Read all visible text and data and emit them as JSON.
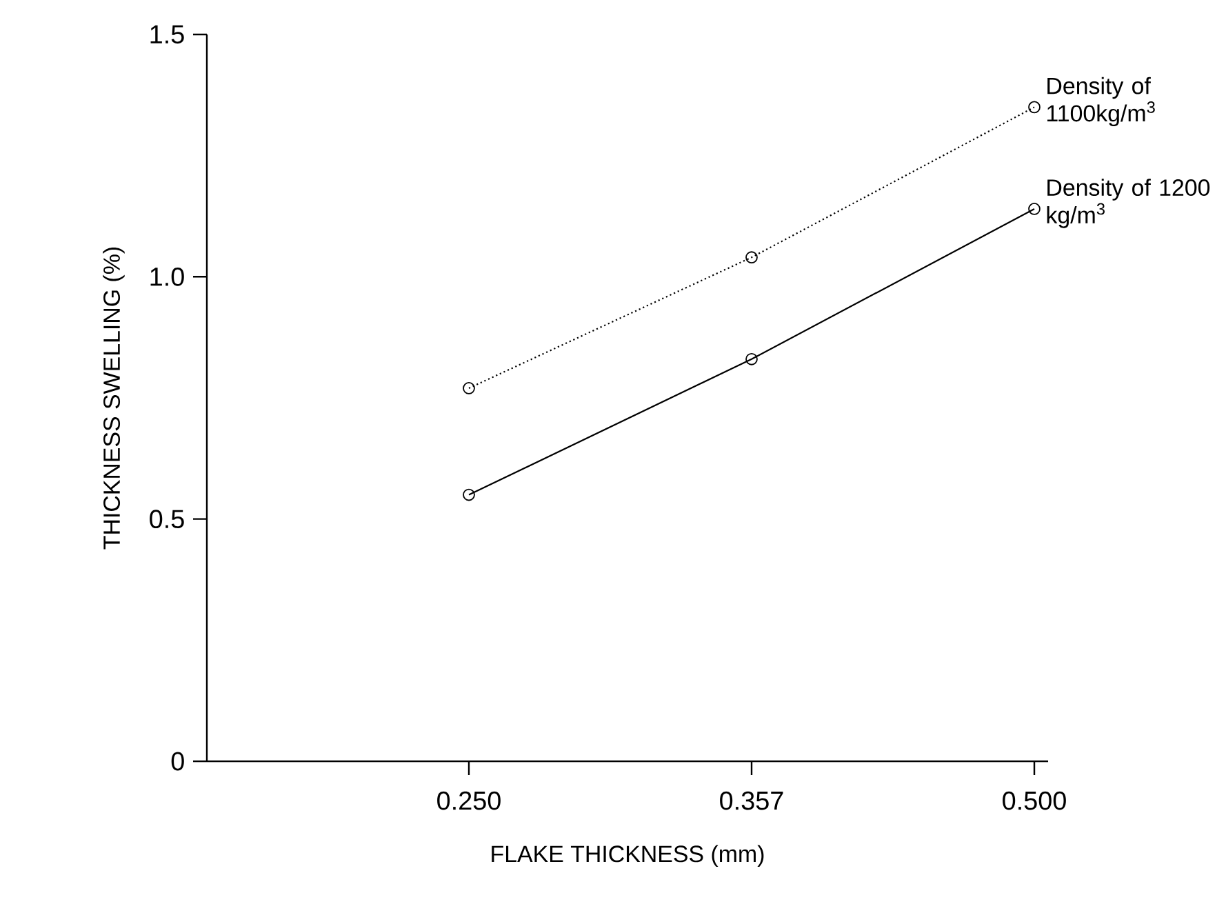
{
  "chart_data": {
    "type": "line",
    "xlabel": "FLAKE THICKNESS (mm)",
    "ylabel": "THICKNESS SWELLING (%)",
    "categories": [
      "0.250",
      "0.357",
      "0.500"
    ],
    "series": [
      {
        "name": "Density of 1100kg/m$^{3}$",
        "color": "#000000",
        "line_style": "dotted",
        "values": [
          0.77,
          1.04,
          1.35
        ]
      },
      {
        "name": "Density of 1200 kg/m$^{3}$",
        "color": "#000000",
        "line_style": "solid",
        "values": [
          0.55,
          0.83,
          1.14
        ]
      }
    ],
    "ylim": [
      0,
      1.5
    ],
    "yticks": [
      0,
      0.5,
      {
        "value": 1.0,
        "label": "1.0"
      },
      1.5
    ],
    "marker": "circle"
  }
}
